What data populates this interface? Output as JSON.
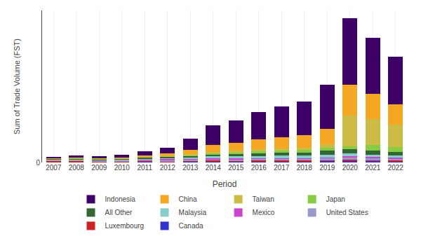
{
  "chart_data": {
    "type": "bar",
    "stacked": true,
    "xlabel": "Period",
    "ylabel": "Sum of Trade Volume (FST)",
    "categories": [
      "2007",
      "2008",
      "2009",
      "2010",
      "2011",
      "2012",
      "2013",
      "2014",
      "2015",
      "2016",
      "2017",
      "2018",
      "2019",
      "2020",
      "2021",
      "2022"
    ],
    "series": [
      {
        "name": "Canada",
        "color": "#3333cc",
        "values": [
          50,
          50,
          50,
          60,
          70,
          60,
          80,
          100,
          90,
          100,
          120,
          110,
          140,
          160,
          140,
          120
        ]
      },
      {
        "name": "Luxembourg",
        "color": "#cc2222",
        "values": [
          80,
          100,
          60,
          50,
          60,
          50,
          60,
          70,
          60,
          80,
          60,
          60,
          80,
          100,
          80,
          70
        ]
      },
      {
        "name": "United States",
        "color": "#9999cc",
        "values": [
          100,
          90,
          90,
          100,
          110,
          90,
          130,
          150,
          170,
          170,
          170,
          170,
          190,
          240,
          210,
          190
        ]
      },
      {
        "name": "Mexico",
        "color": "#cc44cc",
        "values": [
          15,
          15,
          15,
          15,
          28,
          140,
          55,
          55,
          55,
          55,
          55,
          55,
          55,
          55,
          55,
          55
        ]
      },
      {
        "name": "Malaysia",
        "color": "#88cccc",
        "values": [
          30,
          40,
          30,
          40,
          80,
          80,
          130,
          180,
          200,
          200,
          230,
          230,
          260,
          260,
          230,
          200
        ]
      },
      {
        "name": "All Other",
        "color": "#336633",
        "values": [
          55,
          65,
          55,
          80,
          105,
          105,
          155,
          205,
          230,
          260,
          285,
          310,
          385,
          385,
          360,
          310
        ]
      },
      {
        "name": "Japan",
        "color": "#88cc44",
        "values": [
          28,
          40,
          28,
          40,
          55,
          55,
          80,
          105,
          130,
          155,
          180,
          205,
          260,
          310,
          515,
          465
        ]
      },
      {
        "name": "Taiwan",
        "color": "#ccbb44",
        "values": [
          28,
          28,
          28,
          40,
          55,
          55,
          80,
          130,
          155,
          180,
          205,
          230,
          310,
          2820,
          2440,
          2050
        ]
      },
      {
        "name": "China",
        "color": "#f5a623",
        "values": [
          30,
          40,
          40,
          55,
          110,
          220,
          400,
          650,
          720,
          900,
          1020,
          1150,
          1400,
          2800,
          2300,
          1900
        ]
      },
      {
        "name": "Indonesia",
        "color": "#3d0066",
        "values": [
          130,
          155,
          180,
          230,
          385,
          510,
          1020,
          1790,
          2050,
          2560,
          2820,
          3080,
          4100,
          6150,
          5130,
          4360
        ]
      }
    ],
    "ylim": [
      0,
      14000
    ],
    "yticks": [
      0
    ],
    "grid": true,
    "legend": "bottom"
  }
}
